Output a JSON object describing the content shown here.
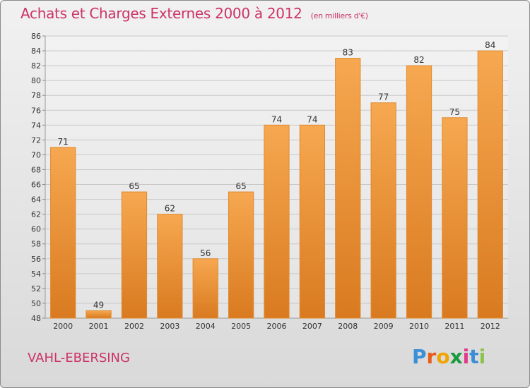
{
  "header": {
    "title": "Achats et Charges Externes 2000 à 2012",
    "unit": "(en milliers d'€)"
  },
  "footer": {
    "commune": "VAHL-EBERSING",
    "brand_letters": [
      "P",
      "r",
      "o",
      "x",
      "i",
      "t",
      "i"
    ],
    "brand_colors": [
      "#3a8fd6",
      "#e85c1c",
      "#f2a400",
      "#1a9a3c",
      "#e03a8a",
      "#3a8fd6",
      "#8bc34a"
    ]
  },
  "colors": {
    "bar_light": "#f6a850",
    "bar_dark": "#d97a20",
    "grid": "#c8c8c8",
    "axis_text": "#333333",
    "title": "#cc3366"
  },
  "chart_data": {
    "type": "bar",
    "categories": [
      "2000",
      "2001",
      "2002",
      "2003",
      "2004",
      "2005",
      "2006",
      "2007",
      "2008",
      "2009",
      "2010",
      "2011",
      "2012"
    ],
    "values": [
      71,
      49,
      65,
      62,
      56,
      65,
      74,
      74,
      83,
      77,
      82,
      75,
      84
    ],
    "data_labels": [
      "71",
      "49",
      "65",
      "62",
      "56",
      "65",
      "74",
      "74",
      "83",
      "77",
      "82",
      "75",
      "84"
    ],
    "ylim": [
      48,
      86
    ],
    "yticks": [
      "48",
      "50",
      "52",
      "54",
      "56",
      "58",
      "60",
      "62",
      "64",
      "66",
      "68",
      "70",
      "72",
      "74",
      "76",
      "78",
      "80",
      "82",
      "84",
      "86"
    ],
    "grid": true,
    "legend": "none"
  }
}
